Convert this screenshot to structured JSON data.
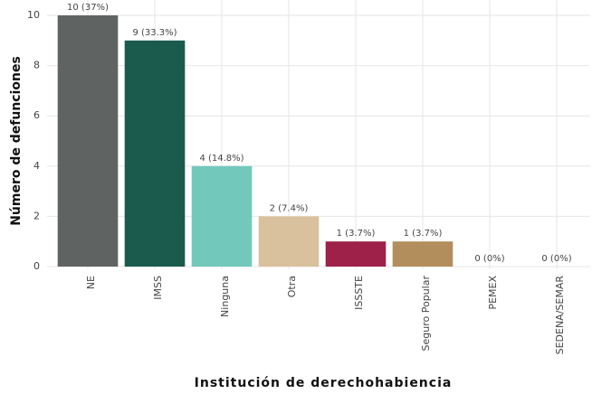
{
  "chart_data": {
    "type": "bar",
    "x_label": "Institución de derechohabiencia",
    "y_label": "Número de defunciones",
    "categories": [
      "NE",
      "IMSS",
      "Ninguna",
      "Otra",
      "ISSSTE",
      "Seguro Popular",
      "PEMEX",
      "SEDENA/SEMAR"
    ],
    "values": [
      10,
      9,
      4,
      2,
      1,
      1,
      0,
      0
    ],
    "value_labels": [
      "10 (37%)",
      "9 (33.3%)",
      "4 (14.8%)",
      "2 (7.4%)",
      "1 (3.7%)",
      "1 (3.7%)",
      "0 (0%)",
      "0 (0%)"
    ],
    "colors": [
      "#5f6462",
      "#1b5b4d",
      "#73c8bc",
      "#d8c19c",
      "#9d2148",
      "#b38e5d",
      "#999999",
      "#999999"
    ],
    "ylim": [
      0,
      10
    ],
    "yticks": [
      0,
      2,
      4,
      6,
      8,
      10
    ],
    "grid": true
  }
}
